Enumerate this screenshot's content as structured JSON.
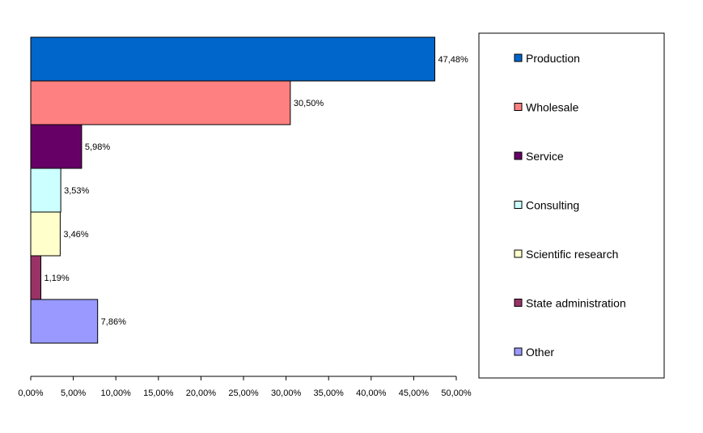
{
  "chart_data": {
    "type": "bar",
    "orientation": "horizontal",
    "categories": [
      "Production",
      "Wholesale",
      "Service",
      "Consulting",
      "Scientific research",
      "State administration",
      "Other"
    ],
    "values": [
      47.48,
      30.5,
      5.98,
      3.53,
      3.46,
      1.19,
      7.86
    ],
    "data_labels": [
      "47,48%",
      "30,50%",
      "5,98%",
      "3,53%",
      "3,46%",
      "1,19%",
      "7,86%"
    ],
    "colors": [
      "#0066cc",
      "#ff8080",
      "#660066",
      "#ccffff",
      "#ffffcc",
      "#993366",
      "#9999ff"
    ],
    "xlim": [
      0,
      50
    ],
    "x_ticks": [
      0,
      5,
      10,
      15,
      20,
      25,
      30,
      35,
      40,
      45,
      50
    ],
    "x_tick_labels": [
      "0,00%",
      "5,00%",
      "10,00%",
      "15,00%",
      "20,00%",
      "25,00%",
      "30,00%",
      "35,00%",
      "40,00%",
      "45,00%",
      "50,00%"
    ],
    "grid": false,
    "legend_position": "right",
    "title": "",
    "xlabel": "",
    "ylabel": ""
  }
}
